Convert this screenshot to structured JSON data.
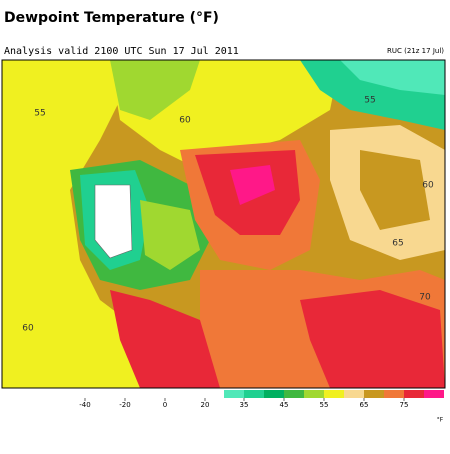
{
  "header": {
    "title": "Dewpoint Temperature (°F)",
    "subtitle": "Analysis valid 2100 UTC Sun 17 Jul 2011",
    "model": "RUC (21z 17 Jul)"
  },
  "map": {
    "contour_labels": [
      "55",
      "60",
      "55",
      "60",
      "65",
      "70",
      "60"
    ]
  },
  "colorbar": {
    "ticks": [
      -40,
      -20,
      0,
      20,
      35,
      45,
      55,
      65,
      75
    ],
    "unit": "°F",
    "bins": [
      30,
      35,
      40,
      45,
      50,
      55,
      60,
      65,
      70,
      75,
      80,
      85
    ],
    "colors": [
      "#50e8b8",
      "#20d090",
      "#00b060",
      "#40b840",
      "#a0d830",
      "#f0f020",
      "#f8d890",
      "#c89820",
      "#f07838",
      "#e82838",
      "#ff1888"
    ]
  }
}
